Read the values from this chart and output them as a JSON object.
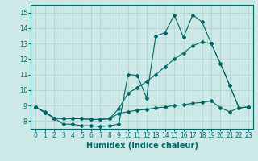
{
  "title": "",
  "xlabel": "Humidex (Indice chaleur)",
  "ylabel": "",
  "bg_color": "#cce9e7",
  "grid_color": "#b0d4d0",
  "line_color": "#006666",
  "xlim": [
    -0.5,
    23.5
  ],
  "ylim": [
    7.5,
    15.5
  ],
  "yticks": [
    8,
    9,
    10,
    11,
    12,
    13,
    14,
    15
  ],
  "xticks": [
    0,
    1,
    2,
    3,
    4,
    5,
    6,
    7,
    8,
    9,
    10,
    11,
    12,
    13,
    14,
    15,
    16,
    17,
    18,
    19,
    20,
    21,
    22,
    23
  ],
  "series1_x": [
    0,
    1,
    2,
    3,
    4,
    5,
    6,
    7,
    8,
    9,
    10,
    11,
    12,
    13,
    14,
    15,
    16,
    17,
    18,
    19,
    20,
    21,
    22,
    23
  ],
  "series1_y": [
    8.9,
    8.6,
    8.2,
    7.8,
    7.8,
    7.7,
    7.7,
    7.65,
    7.7,
    7.8,
    11.0,
    10.95,
    9.5,
    13.5,
    13.7,
    14.85,
    13.4,
    14.85,
    14.4,
    13.0,
    11.7,
    10.3,
    8.85,
    8.9
  ],
  "series2_x": [
    0,
    1,
    2,
    3,
    4,
    5,
    6,
    7,
    8,
    9,
    10,
    11,
    12,
    13,
    14,
    15,
    16,
    17,
    18,
    19,
    20,
    21,
    22,
    23
  ],
  "series2_y": [
    8.9,
    8.55,
    8.2,
    8.15,
    8.15,
    8.15,
    8.1,
    8.1,
    8.15,
    8.8,
    9.8,
    10.15,
    10.55,
    11.0,
    11.5,
    12.0,
    12.4,
    12.85,
    13.1,
    13.0,
    11.7,
    10.3,
    8.85,
    8.9
  ],
  "series3_x": [
    0,
    1,
    2,
    3,
    4,
    5,
    6,
    7,
    8,
    9,
    10,
    11,
    12,
    13,
    14,
    15,
    16,
    17,
    18,
    19,
    20,
    21,
    22,
    23
  ],
  "series3_y": [
    8.9,
    8.55,
    8.2,
    8.15,
    8.15,
    8.15,
    8.1,
    8.1,
    8.15,
    8.5,
    8.6,
    8.7,
    8.75,
    8.85,
    8.9,
    9.0,
    9.05,
    9.15,
    9.2,
    9.3,
    8.85,
    8.6,
    8.85,
    8.9
  ]
}
